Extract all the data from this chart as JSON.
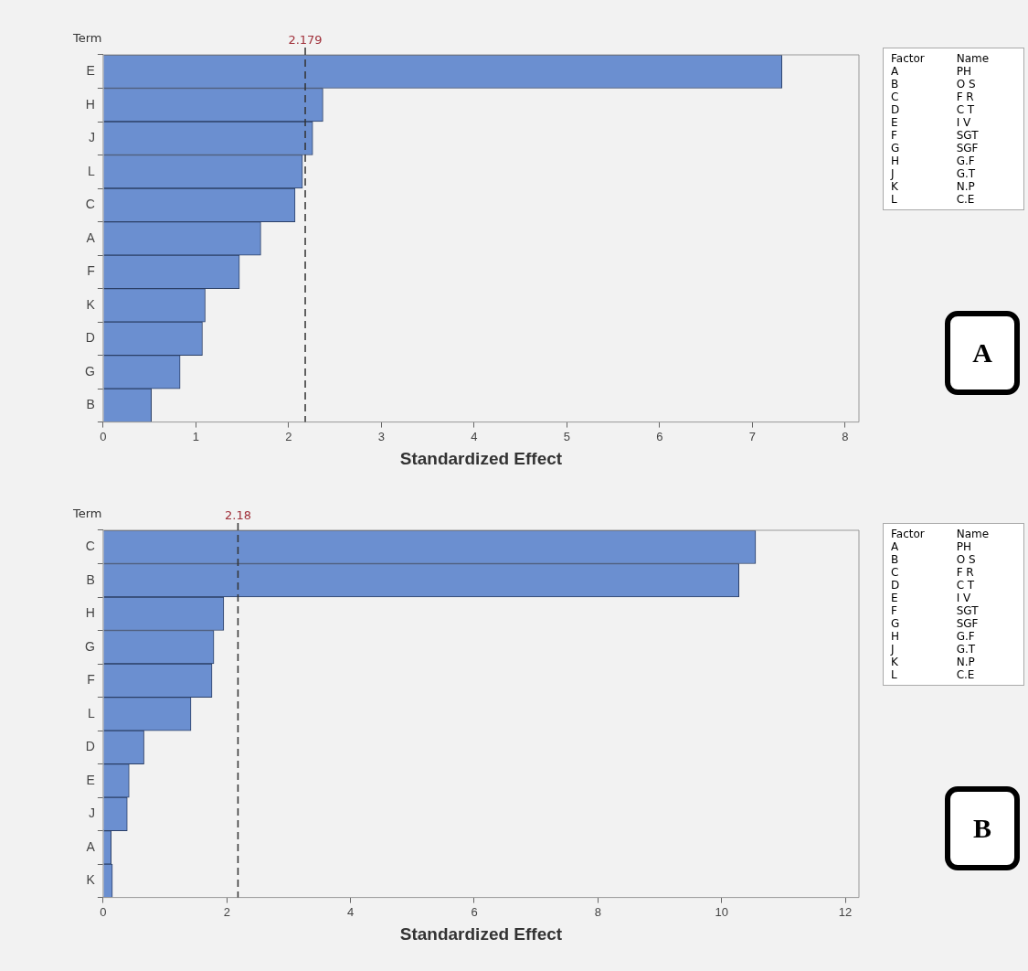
{
  "chart_data": [
    {
      "type": "bar",
      "orientation": "horizontal",
      "ylabel": "Term",
      "xlabel": "Standardized Effect",
      "categories": [
        "E",
        "H",
        "J",
        "L",
        "C",
        "A",
        "F",
        "K",
        "D",
        "G",
        "B"
      ],
      "series": [
        {
          "color": "#6b8fd0",
          "values": [
            7.32,
            2.37,
            2.26,
            2.15,
            2.07,
            1.7,
            1.47,
            1.1,
            1.07,
            0.83,
            0.52
          ]
        }
      ],
      "xlim": [
        0,
        8.15
      ],
      "xticks": [
        0,
        1,
        2,
        3,
        4,
        5,
        6,
        7,
        8
      ],
      "grid": false,
      "legend": false,
      "ref_lines": [
        {
          "axis": "x",
          "value": 2.179,
          "label": "2.179",
          "color": "#333333",
          "line_style": "dashed"
        }
      ],
      "annotations": [
        "Factor Name",
        "A PH",
        "B O S",
        "C F R",
        "D C T",
        "E I V",
        "F SGT",
        "G SGF",
        "H G.F",
        "J G.T",
        "K N.P",
        "L C.E",
        "A"
      ]
    },
    {
      "type": "bar",
      "orientation": "horizontal",
      "ylabel": "Term",
      "xlabel": "Standardized Effect",
      "categories": [
        "C",
        "B",
        "H",
        "G",
        "F",
        "L",
        "D",
        "E",
        "J",
        "A",
        "K"
      ],
      "series": [
        {
          "color": "#6b8fd0",
          "values": [
            10.55,
            10.28,
            1.95,
            1.79,
            1.76,
            1.42,
            0.66,
            0.42,
            0.39,
            0.13,
            0.15
          ]
        }
      ],
      "xlim": [
        0,
        12.22
      ],
      "xticks": [
        0,
        2,
        4,
        6,
        8,
        10,
        12
      ],
      "grid": false,
      "legend": false,
      "ref_lines": [
        {
          "axis": "x",
          "value": 2.18,
          "label": "2.18",
          "color": "#333333",
          "line_style": "dashed"
        }
      ],
      "annotations": [
        "Factor Name",
        "A PH",
        "B O S",
        "C F R",
        "D C T",
        "E I V",
        "F SGT",
        "G SGF",
        "H G.F",
        "J G.T",
        "K N.P",
        "L C.E",
        "B"
      ]
    }
  ]
}
